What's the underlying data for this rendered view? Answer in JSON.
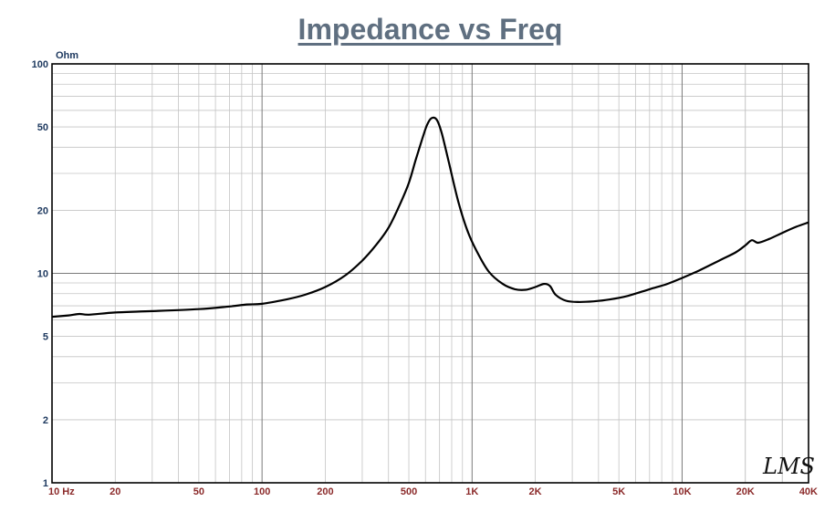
{
  "chart_data": {
    "type": "line",
    "title": "Impedance vs Freq",
    "ylabel": "Ohm",
    "xscale": "log",
    "yscale": "log",
    "xlim": [
      10,
      40000
    ],
    "ylim": [
      1,
      100
    ],
    "grid": true,
    "xticks": [
      {
        "v": 10,
        "label": "10  Hz"
      },
      {
        "v": 20,
        "label": "20"
      },
      {
        "v": 50,
        "label": "50"
      },
      {
        "v": 100,
        "label": "100"
      },
      {
        "v": 200,
        "label": "200"
      },
      {
        "v": 500,
        "label": "500"
      },
      {
        "v": 1000,
        "label": "1K"
      },
      {
        "v": 2000,
        "label": "2K"
      },
      {
        "v": 5000,
        "label": "5K"
      },
      {
        "v": 10000,
        "label": "10K"
      },
      {
        "v": 20000,
        "label": "20K"
      },
      {
        "v": 40000,
        "label": "40K"
      }
    ],
    "yticks": [
      {
        "v": 100,
        "label": "100"
      },
      {
        "v": 50,
        "label": "50"
      },
      {
        "v": 20,
        "label": "20"
      },
      {
        "v": 10,
        "label": "10"
      },
      {
        "v": 5,
        "label": "5"
      },
      {
        "v": 2,
        "label": "2"
      },
      {
        "v": 1,
        "label": "1"
      }
    ],
    "series": [
      {
        "x": [
          10,
          12,
          13.5,
          15,
          20,
          30,
          50,
          70,
          85,
          100,
          130,
          160,
          200,
          250,
          300,
          350,
          400,
          450,
          500,
          540,
          580,
          610,
          640,
          680,
          720,
          780,
          860,
          950,
          1050,
          1200,
          1400,
          1600,
          1800,
          2000,
          2200,
          2350,
          2500,
          2800,
          3200,
          3800,
          4500,
          5500,
          7000,
          8500,
          10000,
          12000,
          15000,
          18000,
          20000,
          21500,
          23000,
          26000,
          30000,
          35000,
          40000
        ],
        "y": [
          6.2,
          6.3,
          6.4,
          6.35,
          6.5,
          6.6,
          6.75,
          6.95,
          7.1,
          7.15,
          7.5,
          7.9,
          8.6,
          9.8,
          11.5,
          13.7,
          16.5,
          21,
          27,
          35,
          44,
          51,
          55,
          54,
          46,
          33,
          22,
          16,
          12.8,
          10.2,
          8.9,
          8.4,
          8.35,
          8.6,
          8.9,
          8.7,
          7.9,
          7.4,
          7.3,
          7.35,
          7.5,
          7.8,
          8.4,
          8.9,
          9.5,
          10.3,
          11.5,
          12.6,
          13.6,
          14.4,
          14.0,
          14.6,
          15.6,
          16.7,
          17.5
        ]
      }
    ]
  },
  "signature": "LMS"
}
